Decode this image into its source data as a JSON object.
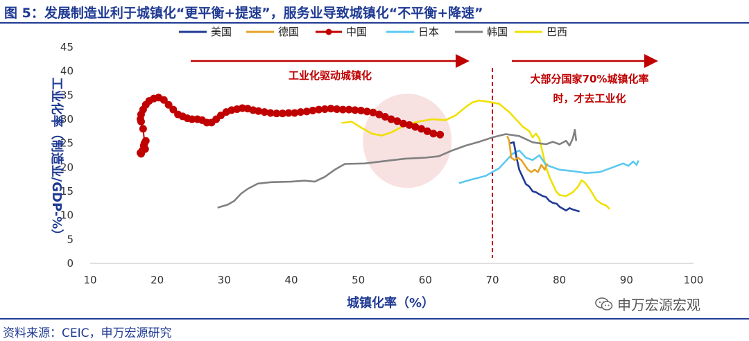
{
  "title": "图 5：发展制造业利于城镇化“更平衡+提速”，服务业导致城镇化“不平衡+降速”",
  "source": "资料来源：CEIC，申万宏源研究",
  "watermark": "申万宏源宏观",
  "annotations": {
    "left_text": "工业化驱动城镇化",
    "right_line1": "大部分国家70%城镇化率",
    "right_line2": "时，才去工业化",
    "threshold_x": 70
  },
  "colors": {
    "title": "#1f3a93",
    "arrow": "#c00000",
    "highlight": "#f6dcdc"
  },
  "chart_data": {
    "type": "line",
    "xlabel": "城镇化率（%）",
    "ylabel": "工业化率（制造业/GDP-%）",
    "xlim": [
      10,
      100
    ],
    "ylim": [
      0,
      45
    ],
    "xticks": [
      10,
      20,
      30,
      40,
      50,
      60,
      70,
      80,
      90,
      100
    ],
    "yticks": [
      0,
      5,
      10,
      15,
      20,
      25,
      30,
      35,
      40,
      45
    ],
    "grid": false,
    "legend_position": "top",
    "series": [
      {
        "name": "美国",
        "color": "#1f3a93",
        "markers": false,
        "points": [
          [
            72.6,
            25.0
          ],
          [
            73.2,
            25.2
          ],
          [
            73.6,
            22.0
          ],
          [
            74.0,
            19.5
          ],
          [
            74.5,
            18.0
          ],
          [
            75.0,
            16.5
          ],
          [
            75.5,
            16.0
          ],
          [
            76.0,
            15.0
          ],
          [
            76.5,
            14.8
          ],
          [
            77.0,
            14.4
          ],
          [
            77.5,
            14.0
          ],
          [
            78.0,
            13.8
          ],
          [
            78.5,
            13.0
          ],
          [
            79.0,
            12.6
          ],
          [
            79.6,
            12.4
          ],
          [
            80.0,
            11.8
          ],
          [
            80.5,
            11.4
          ],
          [
            81.0,
            11.0
          ],
          [
            81.5,
            11.5
          ],
          [
            82.0,
            11.2
          ],
          [
            82.5,
            11.0
          ],
          [
            83.0,
            10.8
          ]
        ]
      },
      {
        "name": "德国",
        "color": "#e5a324",
        "markers": false,
        "points": [
          [
            72.2,
            26.5
          ],
          [
            72.5,
            25.5
          ],
          [
            72.8,
            22.0
          ],
          [
            73.3,
            21.5
          ],
          [
            73.8,
            22.0
          ],
          [
            74.3,
            21.5
          ],
          [
            74.8,
            20.5
          ],
          [
            75.3,
            19.5
          ],
          [
            75.8,
            19.0
          ],
          [
            76.3,
            19.5
          ],
          [
            76.8,
            19.0
          ],
          [
            77.3,
            20.5
          ],
          [
            77.8,
            19.5
          ],
          [
            78.2,
            20.8
          ]
        ]
      },
      {
        "name": "中国",
        "color": "#c00000",
        "markers": true,
        "points": [
          [
            17.5,
            23.0
          ],
          [
            17.6,
            22.8
          ],
          [
            17.8,
            23.5
          ],
          [
            18.0,
            24.5
          ],
          [
            18.1,
            25.0
          ],
          [
            18.3,
            25.5
          ],
          [
            18.2,
            23.8
          ],
          [
            17.9,
            28.0
          ],
          [
            17.6,
            29.5
          ],
          [
            17.5,
            30.0
          ],
          [
            17.6,
            31.0
          ],
          [
            17.9,
            32.0
          ],
          [
            18.3,
            33.0
          ],
          [
            18.8,
            33.8
          ],
          [
            19.5,
            34.3
          ],
          [
            20.2,
            34.5
          ],
          [
            21.0,
            34.0
          ],
          [
            21.7,
            33.0
          ],
          [
            22.4,
            32.0
          ],
          [
            23.1,
            31.0
          ],
          [
            23.8,
            30.6
          ],
          [
            24.5,
            30.2
          ],
          [
            25.2,
            30.0
          ],
          [
            26.0,
            30.0
          ],
          [
            26.7,
            29.8
          ],
          [
            27.4,
            29.3
          ],
          [
            28.1,
            29.3
          ],
          [
            28.8,
            30.0
          ],
          [
            29.5,
            30.8
          ],
          [
            30.3,
            31.5
          ],
          [
            31.1,
            31.9
          ],
          [
            31.9,
            32.1
          ],
          [
            32.7,
            32.3
          ],
          [
            33.5,
            32.2
          ],
          [
            34.3,
            31.9
          ],
          [
            35.1,
            31.7
          ],
          [
            36.0,
            31.5
          ],
          [
            36.9,
            31.3
          ],
          [
            37.8,
            31.2
          ],
          [
            38.7,
            31.2
          ],
          [
            39.6,
            31.3
          ],
          [
            40.5,
            31.3
          ],
          [
            41.4,
            31.5
          ],
          [
            42.3,
            31.6
          ],
          [
            43.2,
            31.8
          ],
          [
            44.1,
            32.0
          ],
          [
            45.0,
            32.1
          ],
          [
            45.9,
            32.2
          ],
          [
            46.8,
            32.1
          ],
          [
            47.7,
            32.0
          ],
          [
            48.6,
            32.0
          ],
          [
            49.5,
            31.9
          ],
          [
            50.4,
            31.8
          ],
          [
            51.3,
            31.6
          ],
          [
            52.2,
            31.4
          ],
          [
            53.1,
            31.0
          ],
          [
            54.0,
            30.5
          ],
          [
            54.9,
            30.0
          ],
          [
            55.8,
            29.6
          ],
          [
            56.7,
            29.1
          ],
          [
            57.6,
            28.8
          ],
          [
            58.5,
            28.4
          ],
          [
            59.4,
            28.0
          ],
          [
            60.3,
            27.5
          ],
          [
            61.2,
            27.0
          ],
          [
            62.2,
            26.8
          ]
        ]
      },
      {
        "name": "日本",
        "color": "#5bc8f0",
        "markers": false,
        "points": [
          [
            65.0,
            16.7
          ],
          [
            67.0,
            17.5
          ],
          [
            69.0,
            18.2
          ],
          [
            71.0,
            19.8
          ],
          [
            73.0,
            22.8
          ],
          [
            74.0,
            23.5
          ],
          [
            75.0,
            22.0
          ],
          [
            76.0,
            21.5
          ],
          [
            77.0,
            22.5
          ],
          [
            78.0,
            20.5
          ],
          [
            80.0,
            19.5
          ],
          [
            82.0,
            19.2
          ],
          [
            84.0,
            18.8
          ],
          [
            86.0,
            19.0
          ],
          [
            88.0,
            20.0
          ],
          [
            89.5,
            20.8
          ],
          [
            90.3,
            20.3
          ],
          [
            91.0,
            21.2
          ],
          [
            91.5,
            20.5
          ],
          [
            91.8,
            21.4
          ]
        ]
      },
      {
        "name": "韩国",
        "color": "#808080",
        "markers": false,
        "points": [
          [
            29.0,
            11.6
          ],
          [
            30.5,
            12.2
          ],
          [
            31.5,
            13.0
          ],
          [
            32.5,
            14.5
          ],
          [
            33.5,
            15.5
          ],
          [
            35.0,
            16.6
          ],
          [
            37.0,
            16.9
          ],
          [
            40.0,
            17.0
          ],
          [
            42.0,
            17.2
          ],
          [
            43.5,
            17.0
          ],
          [
            45.0,
            18.0
          ],
          [
            46.5,
            19.5
          ],
          [
            48.0,
            20.7
          ],
          [
            51.0,
            20.8
          ],
          [
            54.0,
            21.3
          ],
          [
            57.0,
            21.8
          ],
          [
            60.0,
            22.0
          ],
          [
            62.0,
            22.3
          ],
          [
            64.0,
            23.5
          ],
          [
            66.0,
            24.5
          ],
          [
            68.0,
            25.3
          ],
          [
            70.0,
            26.2
          ],
          [
            72.0,
            26.9
          ],
          [
            74.0,
            26.5
          ],
          [
            76.0,
            25.2
          ],
          [
            78.0,
            24.8
          ],
          [
            79.0,
            25.3
          ],
          [
            80.0,
            24.8
          ],
          [
            81.0,
            25.5
          ],
          [
            81.5,
            24.5
          ],
          [
            82.0,
            26.0
          ],
          [
            82.3,
            27.8
          ],
          [
            82.5,
            25.5
          ]
        ]
      },
      {
        "name": "巴西",
        "color": "#f0e000",
        "markers": false,
        "points": [
          [
            47.5,
            29.2
          ],
          [
            49.0,
            29.5
          ],
          [
            50.5,
            28.2
          ],
          [
            52.0,
            27.0
          ],
          [
            53.5,
            26.6
          ],
          [
            55.0,
            27.3
          ],
          [
            57.0,
            28.8
          ],
          [
            59.0,
            29.5
          ],
          [
            61.0,
            30.0
          ],
          [
            63.0,
            29.8
          ],
          [
            64.5,
            30.8
          ],
          [
            66.0,
            32.5
          ],
          [
            67.0,
            33.5
          ],
          [
            68.0,
            33.9
          ],
          [
            69.5,
            33.6
          ],
          [
            71.0,
            33.2
          ],
          [
            72.5,
            31.5
          ],
          [
            73.5,
            30.0
          ],
          [
            74.5,
            28.5
          ],
          [
            75.5,
            27.5
          ],
          [
            76.0,
            26.2
          ],
          [
            76.5,
            27.0
          ],
          [
            77.0,
            26.0
          ],
          [
            77.5,
            23.0
          ],
          [
            78.0,
            20.0
          ],
          [
            78.5,
            18.0
          ],
          [
            79.0,
            16.5
          ],
          [
            79.5,
            15.0
          ],
          [
            80.0,
            14.2
          ],
          [
            81.0,
            14.0
          ],
          [
            82.0,
            14.8
          ],
          [
            82.8,
            16.0
          ],
          [
            83.3,
            17.3
          ],
          [
            83.8,
            16.8
          ],
          [
            84.5,
            15.5
          ],
          [
            85.5,
            13.2
          ],
          [
            86.3,
            12.4
          ],
          [
            87.0,
            12.0
          ],
          [
            87.5,
            11.3
          ]
        ]
      }
    ]
  }
}
